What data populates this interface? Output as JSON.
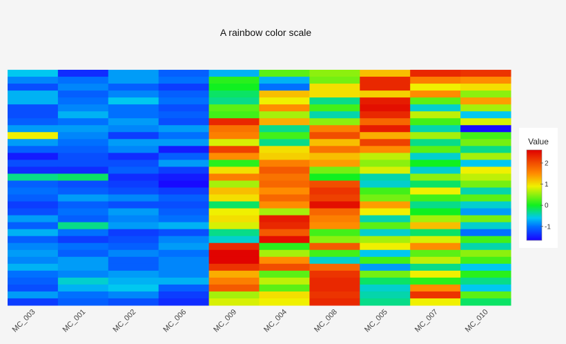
{
  "chart_data": {
    "type": "heatmap",
    "title": "A rainbow color scale",
    "columns": [
      "MC_003",
      "MC_001",
      "MC_002",
      "MC_006",
      "MC_009",
      "MC_004",
      "MC_008",
      "MC_005",
      "MC_007",
      "MC_010"
    ],
    "values": [
      [
        -0.6,
        -1.4,
        -0.8,
        -1.1,
        -0.7,
        0.3,
        0.5,
        1.2,
        2.3,
        2.2
      ],
      [
        -0.9,
        -1.0,
        -0.8,
        -1.0,
        0.1,
        -0.7,
        0.4,
        2.3,
        1.6,
        1.5
      ],
      [
        -1.2,
        -0.9,
        -1.1,
        -1.3,
        0.0,
        -1.0,
        1.0,
        2.3,
        0.9,
        1.0
      ],
      [
        -0.7,
        -1.1,
        -0.9,
        -1.1,
        -0.2,
        1.2,
        1.0,
        1.1,
        1.5,
        0.5
      ],
      [
        -0.7,
        -1.0,
        -0.6,
        -1.0,
        -0.3,
        0.9,
        -0.3,
        2.4,
        0.3,
        1.4
      ],
      [
        -1.2,
        -0.9,
        -1.0,
        -1.2,
        0.3,
        1.5,
        0.2,
        2.5,
        -0.5,
        0.6
      ],
      [
        -1.2,
        -0.7,
        -1.0,
        -1.1,
        0.2,
        0.6,
        -0.4,
        2.3,
        0.7,
        -0.6
      ],
      [
        -1.1,
        -1.0,
        -0.8,
        -1.2,
        2.3,
        1.3,
        0.5,
        1.8,
        0.2,
        0.8
      ],
      [
        -0.8,
        -0.8,
        -0.9,
        -0.8,
        1.7,
        -0.3,
        1.6,
        2.4,
        -0.4,
        -1.6
      ],
      [
        0.9,
        -0.9,
        -1.3,
        -1.0,
        1.6,
        0.2,
        2.0,
        1.3,
        0.6,
        0.2
      ],
      [
        -0.8,
        -1.0,
        -0.8,
        -0.8,
        0.8,
        -0.3,
        1.2,
        2.1,
        -0.3,
        0.4
      ],
      [
        -1.1,
        -1.1,
        -0.9,
        -1.5,
        2.1,
        1.0,
        1.7,
        1.5,
        0.3,
        -0.3
      ],
      [
        -1.5,
        -1.2,
        -1.4,
        -1.1,
        1.5,
        1.1,
        1.2,
        0.7,
        -0.5,
        0.6
      ],
      [
        -1.2,
        -1.2,
        -1.2,
        -0.8,
        0.1,
        1.6,
        1.4,
        0.5,
        0.0,
        -0.6
      ],
      [
        -1.4,
        -1.4,
        -1.1,
        -1.3,
        1.0,
        1.9,
        0.4,
        0.8,
        -0.5,
        0.9
      ],
      [
        -0.3,
        -0.2,
        -1.4,
        -1.5,
        1.6,
        1.7,
        0.0,
        -0.4,
        0.5,
        0.7
      ],
      [
        -1.1,
        -1.2,
        -1.3,
        -1.6,
        0.6,
        1.8,
        2.0,
        -0.5,
        -0.2,
        0.4
      ],
      [
        -1.0,
        -1.1,
        -1.2,
        -1.3,
        1.2,
        1.5,
        2.2,
        0.2,
        0.9,
        -0.4
      ],
      [
        -1.1,
        -0.8,
        -0.9,
        -1.1,
        1.0,
        1.8,
        2.1,
        0.4,
        0.2,
        0.3
      ],
      [
        -1.3,
        -1.1,
        -1.2,
        -1.2,
        -0.2,
        1.5,
        2.5,
        1.4,
        -0.3,
        -0.5
      ],
      [
        -1.2,
        -1.0,
        -0.8,
        -1.1,
        0.9,
        0.6,
        1.8,
        0.9,
        0.0,
        -0.8
      ],
      [
        -0.8,
        -1.1,
        -0.9,
        -1.0,
        1.0,
        2.4,
        1.6,
        -0.4,
        0.6,
        0.4
      ],
      [
        -1.1,
        -0.3,
        -0.8,
        -0.7,
        0.8,
        2.3,
        1.5,
        0.3,
        1.2,
        -0.5
      ],
      [
        -0.7,
        -1.0,
        -1.3,
        -1.2,
        -0.3,
        1.9,
        0.2,
        -0.5,
        -0.2,
        -1.0
      ],
      [
        -1.1,
        -1.3,
        -1.2,
        -0.9,
        -0.5,
        2.5,
        0.5,
        0.6,
        0.8,
        0.2
      ],
      [
        -0.9,
        -1.0,
        -1.1,
        -0.8,
        2.3,
        0.1,
        1.9,
        0.9,
        1.5,
        -0.4
      ],
      [
        -0.8,
        -1.1,
        -0.9,
        -1.0,
        2.6,
        0.6,
        0.2,
        -0.6,
        0.3,
        0.5
      ],
      [
        -0.9,
        -0.8,
        -1.1,
        -0.9,
        2.6,
        1.5,
        -0.5,
        0.2,
        0.7,
        0.2
      ],
      [
        -0.7,
        -0.8,
        -1.1,
        -0.9,
        2.2,
        2.0,
        1.8,
        -0.8,
        -0.3,
        -0.6
      ],
      [
        -1.0,
        -0.9,
        -0.8,
        -0.9,
        1.3,
        0.3,
        2.2,
        0.4,
        0.9,
        0.1
      ],
      [
        -1.1,
        -0.5,
        -0.7,
        -0.7,
        1.6,
        0.7,
        2.3,
        -0.2,
        0.1,
        -0.3
      ],
      [
        -1.2,
        -0.7,
        -0.6,
        -1.1,
        1.9,
        0.3,
        2.3,
        -0.5,
        1.5,
        -0.6
      ],
      [
        -0.8,
        -1.0,
        -0.9,
        -1.3,
        0.6,
        1.0,
        2.2,
        -0.4,
        2.2,
        0.3
      ],
      [
        -1.3,
        -1.1,
        -1.2,
        -1.4,
        0.8,
        0.9,
        2.3,
        -0.3,
        0.9,
        -0.2
      ]
    ],
    "legend": {
      "title": "Value",
      "placement": "right",
      "range": [
        -1.66,
        2.62
      ],
      "ticks": [
        -1,
        0,
        1,
        2
      ],
      "tick_labels": [
        "-1",
        "0",
        "1",
        "2"
      ]
    },
    "color_scale": {
      "name": "rainbow",
      "stops": [
        {
          "value": -1.66,
          "color": "#1a00ff"
        },
        {
          "value": -1.0,
          "color": "#0070ff"
        },
        {
          "value": -0.6,
          "color": "#00c8f0"
        },
        {
          "value": 0.0,
          "color": "#10f020"
        },
        {
          "value": 0.9,
          "color": "#f0f000"
        },
        {
          "value": 1.5,
          "color": "#ff8c00"
        },
        {
          "value": 2.62,
          "color": "#e00000"
        }
      ]
    }
  }
}
